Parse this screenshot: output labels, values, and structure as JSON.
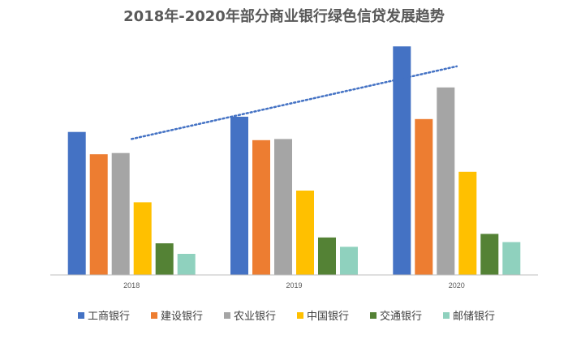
{
  "chart_data": {
    "type": "bar",
    "title": "2018年-2020年部分商业银行绿色信贷发展趋势",
    "xlabel": "",
    "ylabel": "",
    "categories": [
      "2018",
      "2019",
      "2020"
    ],
    "ylim": [
      0,
      2000
    ],
    "grid": false,
    "legend_position": "bottom",
    "series": [
      {
        "name": "工商银行",
        "color": "#4472C4",
        "values": [
          1220,
          1350,
          1950
        ]
      },
      {
        "name": "建设银行",
        "color": "#ED7D31",
        "values": [
          1030,
          1150,
          1330
        ]
      },
      {
        "name": "农业银行",
        "color": "#A5A5A5",
        "values": [
          1040,
          1160,
          1600
        ]
      },
      {
        "name": "中国银行",
        "color": "#FFC000",
        "values": [
          620,
          720,
          880
        ]
      },
      {
        "name": "交通银行",
        "color": "#548235",
        "values": [
          270,
          320,
          350
        ]
      },
      {
        "name": "邮储银行",
        "color": "#8FD1BE",
        "values": [
          180,
          240,
          280
        ]
      }
    ],
    "trendline": {
      "style": "dotted",
      "color": "#4472C4",
      "start_value": 1160,
      "end_value": 1780
    }
  }
}
